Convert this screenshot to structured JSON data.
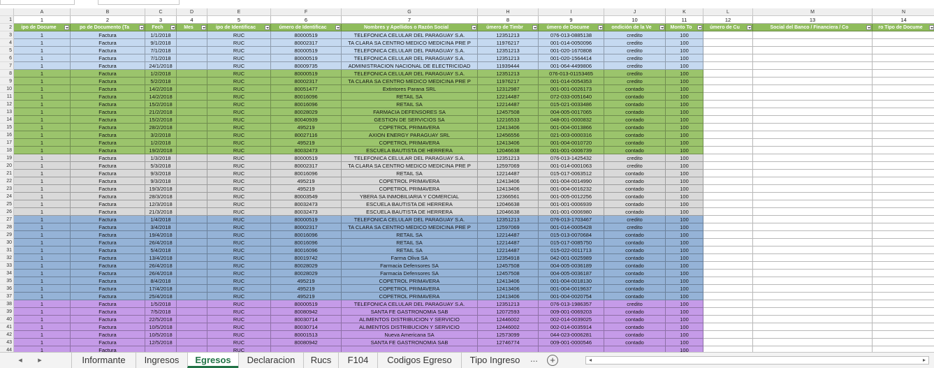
{
  "colors": {
    "header_green": "#8fbc5c",
    "band_blue": "#c5d9f0",
    "band_green": "#9bc46c",
    "band_gray": "#d9d9d9",
    "band_steel": "#95b3d7",
    "band_purple": "#c59be8",
    "active_tab": "#217346"
  },
  "column_letters": [
    "A",
    "B",
    "C",
    "D",
    "E",
    "F",
    "G",
    "H",
    "I",
    "J",
    "K",
    "L",
    "M",
    "N"
  ],
  "column_numbers": [
    "1",
    "2",
    "3",
    "4",
    "5",
    "6",
    "7",
    "8",
    "9",
    "10",
    "11",
    "12",
    "13",
    "14"
  ],
  "header_row": [
    "ipo de Docume",
    "po de Documento (Ta",
    "Fech",
    "Mes",
    "ipo de Identificac",
    "úmero de Identificac",
    "Nombres y Apellidos o Razón Social",
    "úmero de Timbr",
    "úmero de Docume",
    "ondición de la Ve",
    "Monto To",
    "úmero de Cu",
    "Social del Banco / Financiera / Co",
    "ro Tipo de Docume"
  ],
  "rows": [
    {
      "n": "3",
      "band": "band_blue",
      "c": [
        "1",
        "Factura",
        "1/1/2018",
        "",
        "RUC",
        "80000519",
        "TELEFONICA CELULAR DEL PARAGUAY S.A.",
        "12351213",
        "076-013-0885138",
        "credito",
        "100"
      ]
    },
    {
      "n": "4",
      "band": "band_blue",
      "c": [
        "1",
        "Factura",
        "9/1/2018",
        "",
        "RUC",
        "80002317",
        "TA CLARA SA CENTRO MEDICO MEDICINA PRE P",
        "11976217",
        "001-014-0050096",
        "credito",
        "100"
      ]
    },
    {
      "n": "5",
      "band": "band_blue",
      "c": [
        "1",
        "Factura",
        "7/1/2018",
        "",
        "RUC",
        "80000519",
        "TELEFONICA CELULAR DEL PARAGUAY S.A.",
        "12351213",
        "001-020-1670808",
        "credito",
        "100"
      ]
    },
    {
      "n": "6",
      "band": "band_blue",
      "c": [
        "1",
        "Factura",
        "7/1/2018",
        "",
        "RUC",
        "80000519",
        "TELEFONICA CELULAR DEL PARAGUAY S.A.",
        "12351213",
        "001-020-1564414",
        "credito",
        "100"
      ]
    },
    {
      "n": "7",
      "band": "band_blue",
      "c": [
        "1",
        "Factura",
        "24/1/2018",
        "",
        "RUC",
        "80009735",
        "ADMINISTRACION NACIONAL DE ELECTRICIDAD",
        "11939444",
        "001-064-4499806",
        "credito",
        "100"
      ]
    },
    {
      "n": "8",
      "band": "band_green",
      "c": [
        "1",
        "Factura",
        "1/2/2018",
        "",
        "RUC",
        "80000519",
        "TELEFONICA CELULAR DEL PARAGUAY S.A.",
        "12351213",
        "076-013-01153465",
        "credito",
        "100"
      ]
    },
    {
      "n": "9",
      "band": "band_green",
      "c": [
        "1",
        "Factura",
        "5/2/2018",
        "",
        "RUC",
        "80002317",
        "TA CLARA SA CENTRO MEDICO MEDICINA PRE P",
        "11976217",
        "001-014-0054353",
        "credito",
        "100"
      ]
    },
    {
      "n": "10",
      "band": "band_green",
      "c": [
        "1",
        "Factura",
        "14/2/2018",
        "",
        "RUC",
        "80051477",
        "Extintores Parana SRL",
        "12312987",
        "001-001-0026173",
        "contado",
        "100"
      ]
    },
    {
      "n": "11",
      "band": "band_green",
      "c": [
        "1",
        "Factura",
        "14/2/2018",
        "",
        "RUC",
        "80016096",
        "RETAIL SA",
        "12214487",
        "072-033-0051640",
        "contado",
        "100"
      ]
    },
    {
      "n": "12",
      "band": "band_green",
      "c": [
        "1",
        "Factura",
        "15/2/2018",
        "",
        "RUC",
        "80016096",
        "RETAIL SA",
        "12214487",
        "015-021-0033486",
        "contado",
        "100"
      ]
    },
    {
      "n": "13",
      "band": "band_green",
      "c": [
        "1",
        "Factura",
        "21/2/2018",
        "",
        "RUC",
        "80028029",
        "FARMACIA DEFENSORES SA",
        "12457508",
        "004-005-0017065",
        "contado",
        "100"
      ]
    },
    {
      "n": "14",
      "band": "band_green",
      "c": [
        "1",
        "Factura",
        "15/2/2018",
        "",
        "RUC",
        "80040939",
        "GESTION DE SERVICIOS SA",
        "12216533",
        "048-001-0000832",
        "contado",
        "100"
      ]
    },
    {
      "n": "15",
      "band": "band_green",
      "c": [
        "1",
        "Factura",
        "28/2/2018",
        "",
        "RUC",
        "495219",
        "COPETROL PRIMAVERA",
        "12413406",
        "001-004-0013866",
        "contado",
        "100"
      ]
    },
    {
      "n": "16",
      "band": "band_green",
      "c": [
        "1",
        "Factura",
        "3/2/2018",
        "",
        "RUC",
        "80027116",
        "AXION ENERGY PARAGUAY SRL",
        "12456556",
        "021-003-0000316",
        "contado",
        "100"
      ]
    },
    {
      "n": "17",
      "band": "band_green",
      "c": [
        "1",
        "Factura",
        "1/2/2018",
        "",
        "RUC",
        "495219",
        "COPETROL PRIMAVERA",
        "12413406",
        "001-004-0010720",
        "contado",
        "100"
      ]
    },
    {
      "n": "18",
      "band": "band_green",
      "c": [
        "1",
        "Factura",
        "19/2/2018",
        "",
        "RUC",
        "80032473",
        "ESCUELA BAUTISTA DE HERRERA",
        "12046638",
        "001-001-0006739",
        "contado",
        "100"
      ]
    },
    {
      "n": "19",
      "band": "band_gray",
      "c": [
        "1",
        "Factura",
        "1/3/2018",
        "",
        "RUC",
        "80000519",
        "TELEFONICA CELULAR DEL PARAGUAY S.A.",
        "12351213",
        "076-013-1425432",
        "credito",
        "100"
      ]
    },
    {
      "n": "20",
      "band": "band_gray",
      "c": [
        "1",
        "Factura",
        "5/3/2018",
        "",
        "RUC",
        "80002317",
        "TA CLARA SA CENTRO MEDICO MEDICINA PRE P",
        "12597069",
        "001-014-0001063",
        "credito",
        "100"
      ]
    },
    {
      "n": "21",
      "band": "band_gray",
      "c": [
        "1",
        "Factura",
        "9/3/2018",
        "",
        "RUC",
        "80016096",
        "RETAIL SA",
        "12214487",
        "015-017-0063512",
        "contado",
        "100"
      ]
    },
    {
      "n": "22",
      "band": "band_gray",
      "c": [
        "1",
        "Factura",
        "9/3/2018",
        "",
        "RUC",
        "495219",
        "COPETROL PRIMAVERA",
        "12413406",
        "001-004-0014990",
        "contado",
        "100"
      ]
    },
    {
      "n": "23",
      "band": "band_gray",
      "c": [
        "1",
        "Factura",
        "19/3/2018",
        "",
        "RUC",
        "495219",
        "COPETROL PRIMAVERA",
        "12413406",
        "001-004-0016232",
        "contado",
        "100"
      ]
    },
    {
      "n": "24",
      "band": "band_gray",
      "c": [
        "1",
        "Factura",
        "28/3/2018",
        "",
        "RUC",
        "80003549",
        "YBERA SA INMOBILIARIA Y COMERCIAL",
        "12366561",
        "001-005-0012256",
        "contado",
        "100"
      ]
    },
    {
      "n": "25",
      "band": "band_gray",
      "c": [
        "1",
        "Factura",
        "12/3/2018",
        "",
        "RUC",
        "80032473",
        "ESCUELA BAUTISTA DE HERRERA",
        "12046638",
        "001-001-0006939",
        "contado",
        "100"
      ]
    },
    {
      "n": "26",
      "band": "band_gray",
      "c": [
        "1",
        "Factura",
        "21/3/2018",
        "",
        "RUC",
        "80032473",
        "ESCUELA BAUTISTA DE HERRERA",
        "12046638",
        "001-001-0006980",
        "contado",
        "100"
      ]
    },
    {
      "n": "27",
      "band": "band_steel",
      "c": [
        "1",
        "Factura",
        "1/4/2018",
        "",
        "RUC",
        "80000519",
        "TELEFONICA CELULAR DEL PARAGUAY S.A.",
        "12351213",
        "076-013-1703467",
        "credito",
        "100"
      ]
    },
    {
      "n": "28",
      "band": "band_steel",
      "c": [
        "1",
        "Factura",
        "3/4/2018",
        "",
        "RUC",
        "80002317",
        "TA CLARA SA CENTRO MEDICO MEDICINA PRE P",
        "12597069",
        "001-014-0005428",
        "credito",
        "100"
      ]
    },
    {
      "n": "29",
      "band": "band_steel",
      "c": [
        "1",
        "Factura",
        "19/4/2018",
        "",
        "RUC",
        "80016096",
        "RETAIL SA",
        "12214487",
        "015-013-0070684",
        "contado",
        "100"
      ]
    },
    {
      "n": "30",
      "band": "band_steel",
      "c": [
        "1",
        "Factura",
        "26/4/2018",
        "",
        "RUC",
        "80016096",
        "RETAIL SA",
        "12214487",
        "015-017-0085750",
        "contado",
        "100"
      ]
    },
    {
      "n": "31",
      "band": "band_steel",
      "c": [
        "1",
        "Factura",
        "5/4/2018",
        "",
        "RUC",
        "80016096",
        "RETAIL SA",
        "12214487",
        "015-022-0011713",
        "contado",
        "100"
      ]
    },
    {
      "n": "32",
      "band": "band_steel",
      "c": [
        "1",
        "Factura",
        "13/4/2018",
        "",
        "RUC",
        "80019742",
        "Farma Oliva SA",
        "12354918",
        "042-001-0025989",
        "contado",
        "100"
      ]
    },
    {
      "n": "33",
      "band": "band_steel",
      "c": [
        "1",
        "Factura",
        "26/4/2018",
        "",
        "RUC",
        "80028029",
        "Farmacia Defensores SA",
        "12457508",
        "004-005-0036189",
        "contado",
        "100"
      ]
    },
    {
      "n": "34",
      "band": "band_steel",
      "c": [
        "1",
        "Factura",
        "26/4/2018",
        "",
        "RUC",
        "80028029",
        "Farmacia Defensores SA",
        "12457508",
        "004-005-0036187",
        "contado",
        "100"
      ]
    },
    {
      "n": "35",
      "band": "band_steel",
      "c": [
        "1",
        "Factura",
        "8/4/2018",
        "",
        "RUC",
        "495219",
        "COPETROL PRIMAVERA",
        "12413406",
        "001-004-0018130",
        "contado",
        "100"
      ]
    },
    {
      "n": "36",
      "band": "band_steel",
      "c": [
        "1",
        "Factura",
        "17/4/2018",
        "",
        "RUC",
        "495219",
        "COPETROL PRIMAVERA",
        "12413406",
        "001-004-0019637",
        "contado",
        "100"
      ]
    },
    {
      "n": "37",
      "band": "band_steel",
      "c": [
        "1",
        "Factura",
        "25/4/2018",
        "",
        "RUC",
        "495219",
        "COPETROL PRIMAVERA",
        "12413406",
        "001-004-0020754",
        "contado",
        "100"
      ]
    },
    {
      "n": "38",
      "band": "band_purple",
      "c": [
        "1",
        "Factura",
        "1/5/2018",
        "",
        "RUC",
        "80000519",
        "TELEFONICA CELULAR DEL PARAGUAY S.A.",
        "12351213",
        "076-013-1986357",
        "credito",
        "100"
      ]
    },
    {
      "n": "39",
      "band": "band_purple",
      "c": [
        "1",
        "Factura",
        "7/5/2018",
        "",
        "RUC",
        "80080942",
        "SANTA FE GASTRONOMIA SAB",
        "12072593",
        "009-001-0069203",
        "contado",
        "100"
      ]
    },
    {
      "n": "40",
      "band": "band_purple",
      "c": [
        "1",
        "Factura",
        "22/5/2018",
        "",
        "RUC",
        "80030714",
        "ALIMENTOS DISTRIBUCION Y SERVICIO",
        "12446002",
        "002-014-0039025",
        "contado",
        "100"
      ]
    },
    {
      "n": "41",
      "band": "band_purple",
      "c": [
        "1",
        "Factura",
        "10/5/2018",
        "",
        "RUC",
        "80030714",
        "ALIMENTOS DISTRIBUCION Y SERVICIO",
        "12446002",
        "002-014-0035914",
        "contado",
        "100"
      ]
    },
    {
      "n": "42",
      "band": "band_purple",
      "c": [
        "1",
        "Factura",
        "10/5/2018",
        "",
        "RUC",
        "80001513",
        "Nueva Americana SA",
        "12573099",
        "044-023-0006281",
        "contado",
        "100"
      ]
    },
    {
      "n": "43",
      "band": "band_purple",
      "c": [
        "1",
        "Factura",
        "12/5/2018",
        "",
        "RUC",
        "80080942",
        "SANTA FE GASTRONOMIA SAB",
        "12746774",
        "009-001-0000546",
        "contado",
        "100"
      ]
    },
    {
      "n": "44",
      "band": "band_purple",
      "c": [
        "1",
        "Factura",
        "",
        "",
        "RUC",
        "",
        "",
        "",
        "",
        "",
        "100"
      ]
    }
  ],
  "tabs": [
    "Informante",
    "Ingresos",
    "Egresos",
    "Declaracion",
    "Rucs",
    "F104",
    "Codigos Egreso",
    "Tipo Ingreso"
  ],
  "active_tab": "Egresos",
  "more_tabs_label": "...",
  "add_sheet_label": "+"
}
